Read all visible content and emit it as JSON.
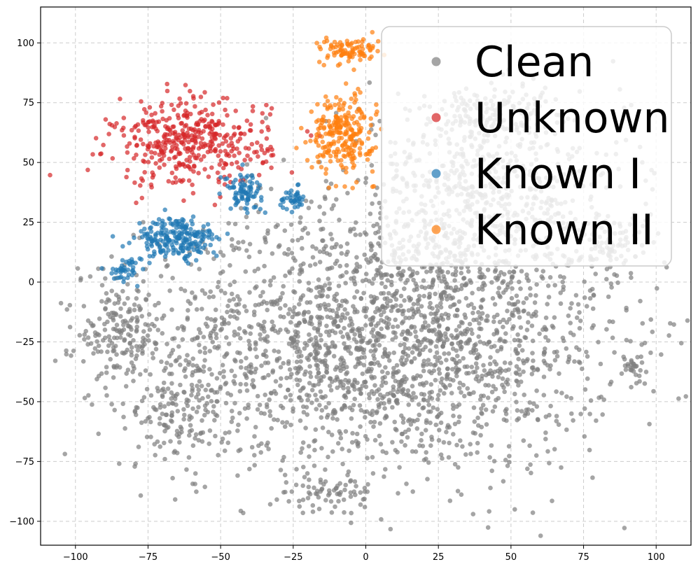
{
  "chart_data": {
    "type": "scatter",
    "title": "",
    "xlabel": "",
    "ylabel": "",
    "xlim": [
      -112,
      112
    ],
    "ylim": [
      -110,
      115
    ],
    "xticks": [
      -100,
      -75,
      -50,
      -25,
      0,
      25,
      50,
      75,
      100
    ],
    "yticks": [
      -100,
      -75,
      -50,
      -25,
      0,
      25,
      50,
      75,
      100
    ],
    "xtick_labels": [
      "−100",
      "−75",
      "−50",
      "−25",
      "0",
      "25",
      "50",
      "75",
      "100"
    ],
    "ytick_labels": [
      "−100",
      "−75",
      "−50",
      "−25",
      "0",
      "25",
      "50",
      "75",
      "100"
    ],
    "grid": true,
    "legend_position": "top-right",
    "series": [
      {
        "name": "Clean",
        "color": "#7f7f7f",
        "clusters": [
          {
            "cx": 5,
            "cy": -25,
            "rx": 90,
            "ry": 60,
            "count": 2300
          },
          {
            "cx": 40,
            "cy": 35,
            "rx": 55,
            "ry": 45,
            "count": 700
          },
          {
            "cx": -85,
            "cy": -20,
            "rx": 15,
            "ry": 20,
            "count": 150
          },
          {
            "cx": -65,
            "cy": -55,
            "rx": 18,
            "ry": 20,
            "count": 120
          },
          {
            "cx": -12,
            "cy": -88,
            "rx": 15,
            "ry": 8,
            "count": 60
          },
          {
            "cx": 42,
            "cy": 70,
            "rx": 25,
            "ry": 15,
            "count": 120
          },
          {
            "cx": 92,
            "cy": -35,
            "rx": 4,
            "ry": 5,
            "count": 25
          },
          {
            "cx": 85,
            "cy": 15,
            "rx": 12,
            "ry": 15,
            "count": 80
          }
        ]
      },
      {
        "name": "Unknown",
        "color": "#d62728",
        "clusters": [
          {
            "cx": -60,
            "cy": 58,
            "rx": 30,
            "ry": 20,
            "count": 420
          }
        ]
      },
      {
        "name": "Known I",
        "color": "#1f77b4",
        "clusters": [
          {
            "cx": -65,
            "cy": 18,
            "rx": 16,
            "ry": 10,
            "count": 220
          },
          {
            "cx": -42,
            "cy": 38,
            "rx": 7,
            "ry": 8,
            "count": 80
          },
          {
            "cx": -25,
            "cy": 35,
            "rx": 5,
            "ry": 5,
            "count": 40
          },
          {
            "cx": -83,
            "cy": 5,
            "rx": 6,
            "ry": 5,
            "count": 40
          }
        ]
      },
      {
        "name": "Known II",
        "color": "#ff7f0e",
        "clusters": [
          {
            "cx": -8,
            "cy": 62,
            "rx": 12,
            "ry": 18,
            "count": 250
          },
          {
            "cx": -5,
            "cy": 97,
            "rx": 12,
            "ry": 6,
            "count": 90
          }
        ]
      }
    ]
  }
}
